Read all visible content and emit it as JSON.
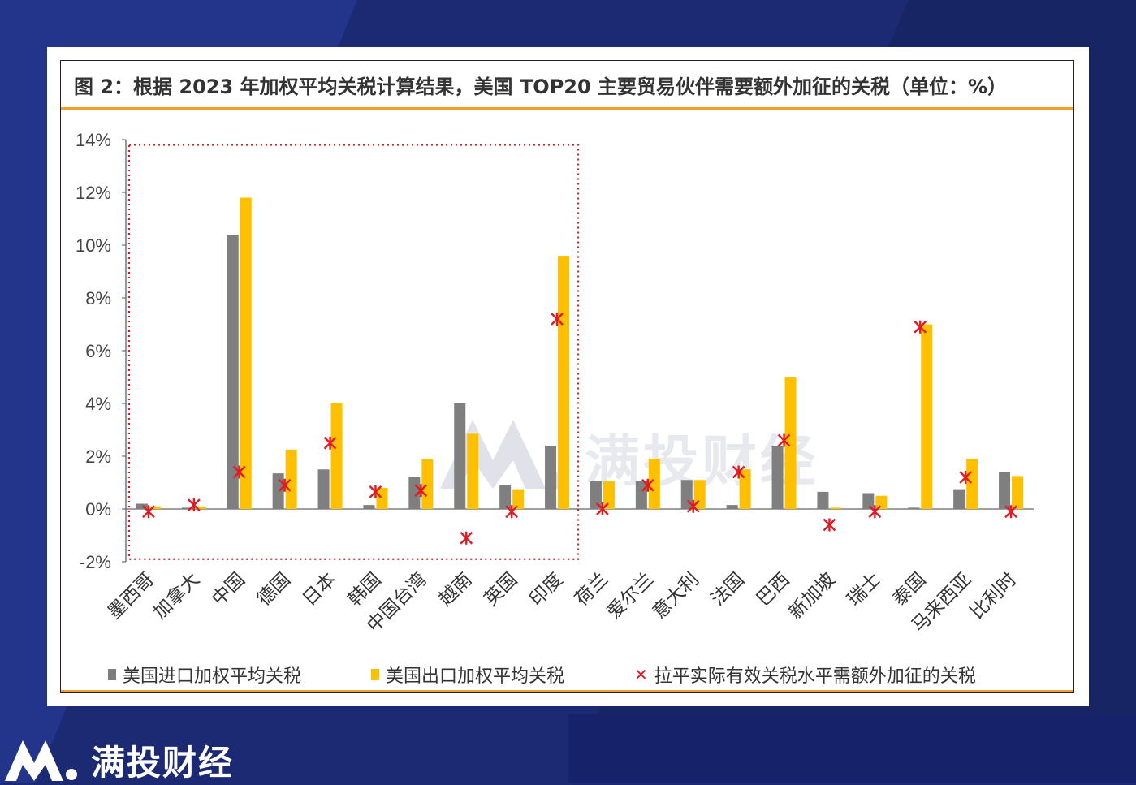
{
  "figure_title": "图 2：根据 2023 年加权平均关税计算结果，美国 TOP20 主要贸易伙伴需要额外加征的关税（单位：%）",
  "watermark": "满投财经",
  "brand": "满投财经",
  "colors": {
    "import_bar": "#7f7f7f",
    "export_bar": "#ffc000",
    "marker": "#e01b24",
    "highlight_box": "#d0222a",
    "accent_rule": "#f0a030"
  },
  "legend": {
    "import": "美国进口加权平均关税",
    "export": "美国出口加权平均关税",
    "extra": "拉平实际有效关税水平需额外加征的关税"
  },
  "chart_data": {
    "type": "bar",
    "title": "",
    "xlabel": "",
    "ylabel": "",
    "ylim": [
      -2,
      14
    ],
    "yticks": [
      -2,
      0,
      2,
      4,
      6,
      8,
      10,
      12,
      14
    ],
    "ytick_labels": [
      "-2%",
      "0%",
      "2%",
      "4%",
      "6%",
      "8%",
      "10%",
      "12%",
      "14%"
    ],
    "grid": false,
    "legend_position": "bottom",
    "categories": [
      "墨西哥",
      "加拿大",
      "中国",
      "德国",
      "日本",
      "韩国",
      "中国台湾",
      "越南",
      "英国",
      "印度",
      "荷兰",
      "爱尔兰",
      "意大利",
      "法国",
      "巴西",
      "新加坡",
      "瑞士",
      "泰国",
      "马来西亚",
      "比利时"
    ],
    "series": [
      {
        "name": "美国进口加权平均关税",
        "kind": "bar",
        "color": "#7f7f7f",
        "values": [
          0.2,
          0.05,
          10.4,
          1.35,
          1.5,
          0.15,
          1.2,
          4.0,
          0.9,
          2.4,
          1.05,
          1.05,
          1.1,
          0.15,
          2.4,
          0.65,
          0.6,
          0.05,
          0.75,
          1.4
        ]
      },
      {
        "name": "美国出口加权平均关税",
        "kind": "bar",
        "color": "#ffc000",
        "values": [
          0.1,
          0.1,
          11.8,
          2.25,
          4.0,
          0.8,
          1.9,
          2.85,
          0.75,
          9.6,
          1.05,
          1.9,
          1.1,
          1.5,
          5.0,
          0.05,
          0.5,
          7.0,
          1.9,
          1.25
        ]
      },
      {
        "name": "拉平实际有效关税水平需额外加征的关税",
        "kind": "marker",
        "color": "#e01b24",
        "values": [
          -0.1,
          0.15,
          1.4,
          0.9,
          2.5,
          0.65,
          0.7,
          -1.1,
          -0.1,
          7.2,
          0.0,
          0.9,
          0.1,
          1.4,
          2.6,
          -0.6,
          -0.1,
          6.9,
          1.2,
          -0.1
        ]
      }
    ]
  }
}
